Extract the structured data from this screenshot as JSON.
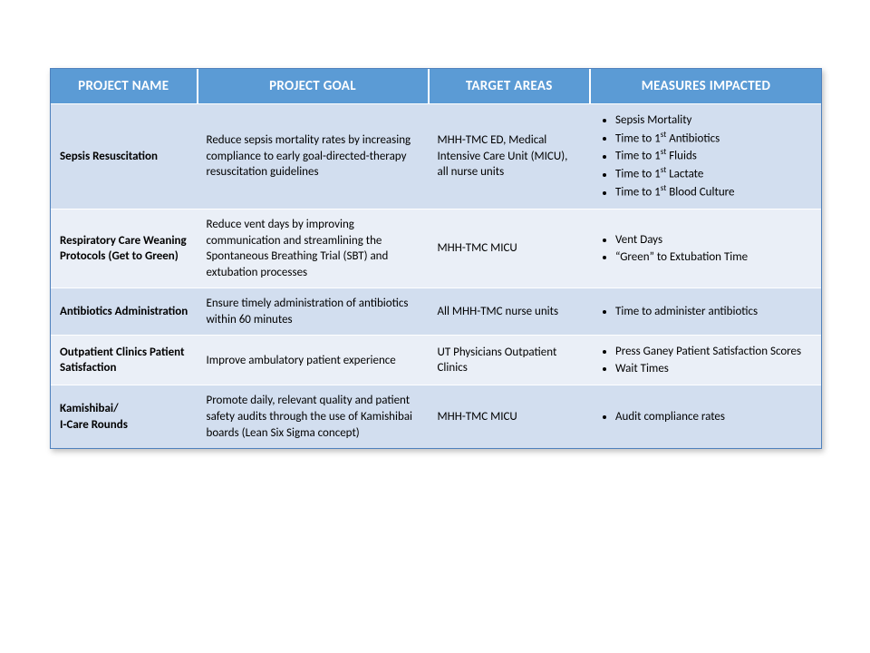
{
  "table": {
    "type": "table",
    "header_bg": "#5b9bd5",
    "header_fg": "#ffffff",
    "row_bg_odd": "#d2deef",
    "row_bg_even": "#eaeff7",
    "border_color": "#4f81bd",
    "font_family": "Calibri",
    "header_fontsize": 15,
    "cell_fontsize": 13,
    "col_widths_pct": [
      19,
      30,
      21,
      30
    ],
    "columns": [
      "PROJECT NAME",
      "PROJECT GOAL",
      "TARGET AREAS",
      "MEASURES IMPACTED"
    ],
    "rows": [
      {
        "name": "Sepsis Resuscitation",
        "goal": "Reduce sepsis mortality rates by increasing compliance to early goal-directed-therapy resuscitation guidelines",
        "target": "MHH-TMC ED, Medical Intensive Care Unit (MICU), all nurse units",
        "measures": [
          "Sepsis Mortality",
          "Time to 1<sup>st</sup> Antibiotics",
          "Time to 1<sup>st</sup> Fluids",
          "Time to 1<sup>st</sup> Lactate",
          "Time to 1<sup>st</sup> Blood Culture"
        ]
      },
      {
        "name": "Respiratory Care Weaning Protocols (Get to Green)",
        "goal": "Reduce vent days by improving communication and streamlining the Spontaneous Breathing Trial (SBT) and extubation processes",
        "target": "MHH-TMC MICU",
        "measures": [
          "Vent Days",
          "“Green” to Extubation Time"
        ]
      },
      {
        "name": "Antibiotics Administration",
        "goal": "Ensure timely administration of antibiotics within 60 minutes",
        "target": "All MHH-TMC nurse units",
        "measures": [
          "Time to administer antibiotics"
        ]
      },
      {
        "name": "Outpatient Clinics Patient Satisfaction",
        "goal": "Improve ambulatory patient experience",
        "target": "UT Physicians Outpatient Clinics",
        "measures": [
          "Press Ganey Patient Satisfaction Scores",
          "Wait Times"
        ]
      },
      {
        "name": "Kamishibai/\nI-Care Rounds",
        "goal": "Promote daily, relevant quality and patient safety audits through the use of Kamishibai boards (Lean Six Sigma concept)",
        "target": "MHH-TMC MICU",
        "measures": [
          "Audit compliance rates"
        ]
      }
    ]
  }
}
